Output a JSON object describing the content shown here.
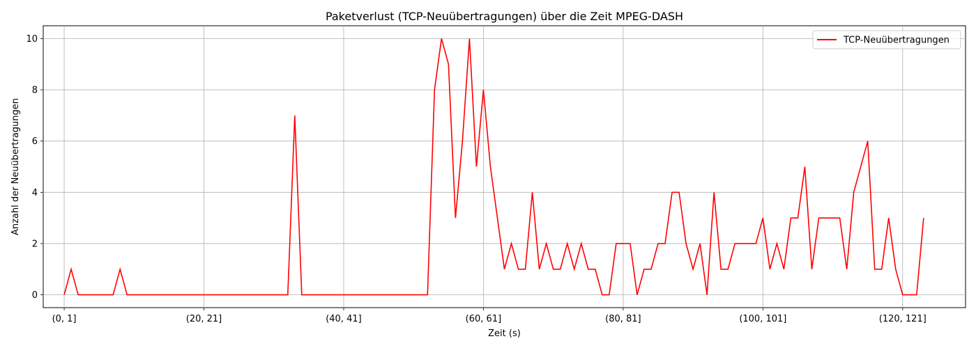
{
  "chart_data": {
    "type": "line",
    "title": "Paketverlust (TCP-Neuübertragungen) über die Zeit MPEG-DASH",
    "xlabel": "Zeit (s)",
    "ylabel": "Anzahl der Neuübertragungen",
    "x": [
      "(0, 1]",
      "(1, 2]",
      "(2, 3]",
      "(3, 4]",
      "(4, 5]",
      "(5, 6]",
      "(6, 7]",
      "(7, 8]",
      "(8, 9]",
      "(9, 10]",
      "(10, 11]",
      "(11, 12]",
      "(12, 13]",
      "(13, 14]",
      "(14, 15]",
      "(15, 16]",
      "(16, 17]",
      "(17, 18]",
      "(18, 19]",
      "(19, 20]",
      "(20, 21]",
      "(21, 22]",
      "(22, 23]",
      "(23, 24]",
      "(24, 25]",
      "(25, 26]",
      "(26, 27]",
      "(27, 28]",
      "(28, 29]",
      "(29, 30]",
      "(30, 31]",
      "(31, 32]",
      "(32, 33]",
      "(33, 34]",
      "(34, 35]",
      "(35, 36]",
      "(36, 37]",
      "(37, 38]",
      "(38, 39]",
      "(39, 40]",
      "(40, 41]",
      "(41, 42]",
      "(42, 43]",
      "(43, 44]",
      "(44, 45]",
      "(45, 46]",
      "(46, 47]",
      "(47, 48]",
      "(48, 49]",
      "(49, 50]",
      "(50, 51]",
      "(51, 52]",
      "(52, 53]",
      "(53, 54]",
      "(54, 55]",
      "(55, 56]",
      "(56, 57]",
      "(57, 58]",
      "(58, 59]",
      "(59, 60]",
      "(60, 61]",
      "(61, 62]",
      "(62, 63]",
      "(63, 64]",
      "(64, 65]",
      "(65, 66]",
      "(66, 67]",
      "(67, 68]",
      "(68, 69]",
      "(69, 70]",
      "(70, 71]",
      "(71, 72]",
      "(72, 73]",
      "(73, 74]",
      "(74, 75]",
      "(75, 76]",
      "(76, 77]",
      "(77, 78]",
      "(78, 79]",
      "(79, 80]",
      "(80, 81]",
      "(81, 82]",
      "(82, 83]",
      "(83, 84]",
      "(84, 85]",
      "(85, 86]",
      "(86, 87]",
      "(87, 88]",
      "(88, 89]",
      "(89, 90]",
      "(90, 91]",
      "(91, 92]",
      "(92, 93]",
      "(93, 94]",
      "(94, 95]",
      "(95, 96]",
      "(96, 97]",
      "(97, 98]",
      "(98, 99]",
      "(99, 100]",
      "(100, 101]",
      "(101, 102]",
      "(102, 103]",
      "(103, 104]",
      "(104, 105]",
      "(105, 106]",
      "(106, 107]",
      "(107, 108]",
      "(108, 109]",
      "(109, 110]",
      "(110, 111]",
      "(111, 112]",
      "(112, 113]",
      "(113, 114]",
      "(114, 115]",
      "(115, 116]",
      "(116, 117]",
      "(117, 118]",
      "(118, 119]",
      "(119, 120]",
      "(120, 121]",
      "(121, 122]",
      "(122, 123]",
      "(123, 124]",
      "(124, 125]",
      "(125, 126]",
      "(126, 127]"
    ],
    "series": [
      {
        "name": "TCP-Neuübertragungen",
        "color": "#ff0000",
        "values": [
          0,
          1,
          0,
          null,
          null,
          null,
          null,
          0,
          1,
          0,
          null,
          null,
          null,
          null,
          null,
          null,
          null,
          null,
          null,
          null,
          null,
          null,
          null,
          null,
          null,
          null,
          null,
          null,
          null,
          null,
          null,
          null,
          0,
          7,
          0,
          null,
          null,
          null,
          null,
          null,
          null,
          null,
          null,
          null,
          null,
          null,
          null,
          null,
          null,
          null,
          null,
          null,
          0,
          8,
          10,
          9,
          3,
          6,
          10,
          5,
          8,
          5,
          3,
          1,
          2,
          1,
          1,
          4,
          1,
          2,
          1,
          1,
          2,
          1,
          2,
          1,
          1,
          0,
          0,
          2,
          2,
          2,
          0,
          1,
          1,
          2,
          2,
          4,
          4,
          2,
          1,
          2,
          0,
          4,
          1,
          1,
          2,
          2,
          2,
          2,
          3,
          1,
          2,
          1,
          3,
          3,
          5,
          1,
          3,
          3,
          3,
          3,
          1,
          4,
          null,
          6,
          1,
          1,
          3,
          1,
          0,
          0,
          0,
          3,
          null,
          null,
          null
        ]
      }
    ],
    "xticks": [
      "(0, 1]",
      "(20, 21]",
      "(40, 41]",
      "(60, 61]",
      "(80, 81]",
      "(100, 101]",
      "(120, 121]"
    ],
    "yticks": [
      "0",
      "2",
      "4",
      "6",
      "8",
      "10"
    ],
    "ylim": [
      0,
      10
    ],
    "grid": true,
    "legend_position": "top-right"
  }
}
